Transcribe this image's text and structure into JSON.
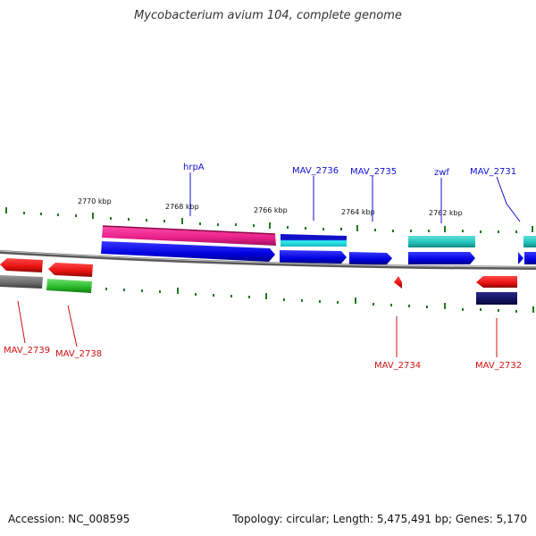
{
  "title": "Mycobacterium avium 104, complete genome",
  "footer": {
    "accession": "Accession: NC_008595",
    "topology": "Topology: circular; Length: 5,475,491 bp; Genes: 5,170"
  },
  "scale_labels": [
    "2770 kbp",
    "2768 kbp",
    "2766 kbp",
    "2764 kbp",
    "2762 kbp"
  ],
  "gene_labels_top": [
    "hrpA",
    "MAV_2736",
    "MAV_2735",
    "zwf",
    "MAV_2731"
  ],
  "gene_labels_bottom": [
    "MAV_2739",
    "MAV_2738",
    "MAV_2734",
    "MAV_2732"
  ],
  "colors": {
    "tick": "#1f7a1f",
    "label_top": "#1010d0",
    "label_bottom": "#d01010",
    "backbone": "#888888"
  }
}
